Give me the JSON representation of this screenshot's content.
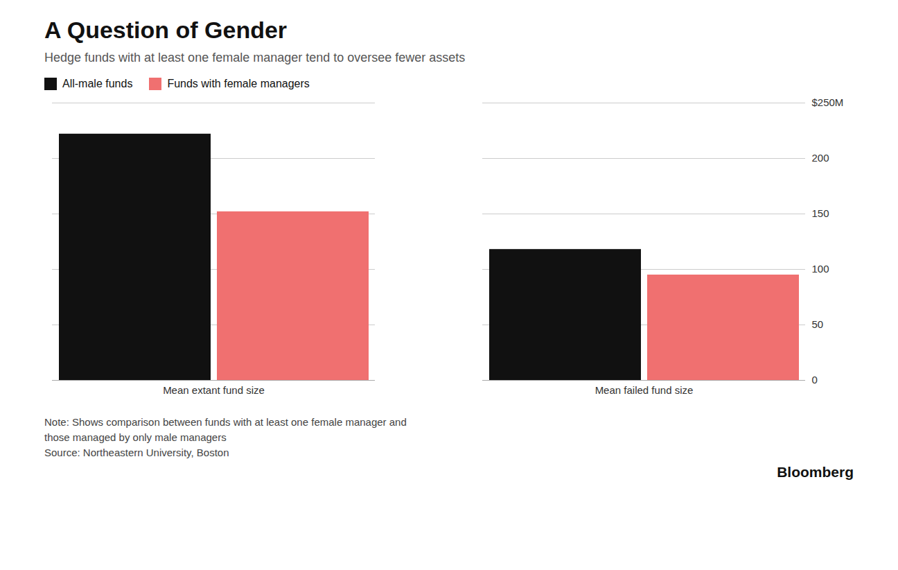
{
  "chart_data": {
    "type": "bar",
    "title": "A Question of Gender",
    "subtitle": "Hedge funds with at least one female manager tend to oversee fewer assets",
    "categories": [
      "Mean extant fund size",
      "Mean failed fund size"
    ],
    "series": [
      {
        "name": "All-male funds",
        "color": "#111111",
        "values": [
          222,
          118
        ]
      },
      {
        "name": "Funds with female managers",
        "color": "#f07070",
        "values": [
          152,
          95
        ]
      }
    ],
    "ylim": [
      0,
      250
    ],
    "yticks": [
      0,
      50,
      100,
      150,
      200,
      {
        "value": 250,
        "label": "$250M"
      }
    ],
    "grid": true,
    "legend": "upper left",
    "notes": [
      "Note: Shows comparison between funds with at least one female manager and",
      "those managed by only male managers",
      "Source: Northeastern University, Boston"
    ],
    "branding": "Bloomberg"
  }
}
